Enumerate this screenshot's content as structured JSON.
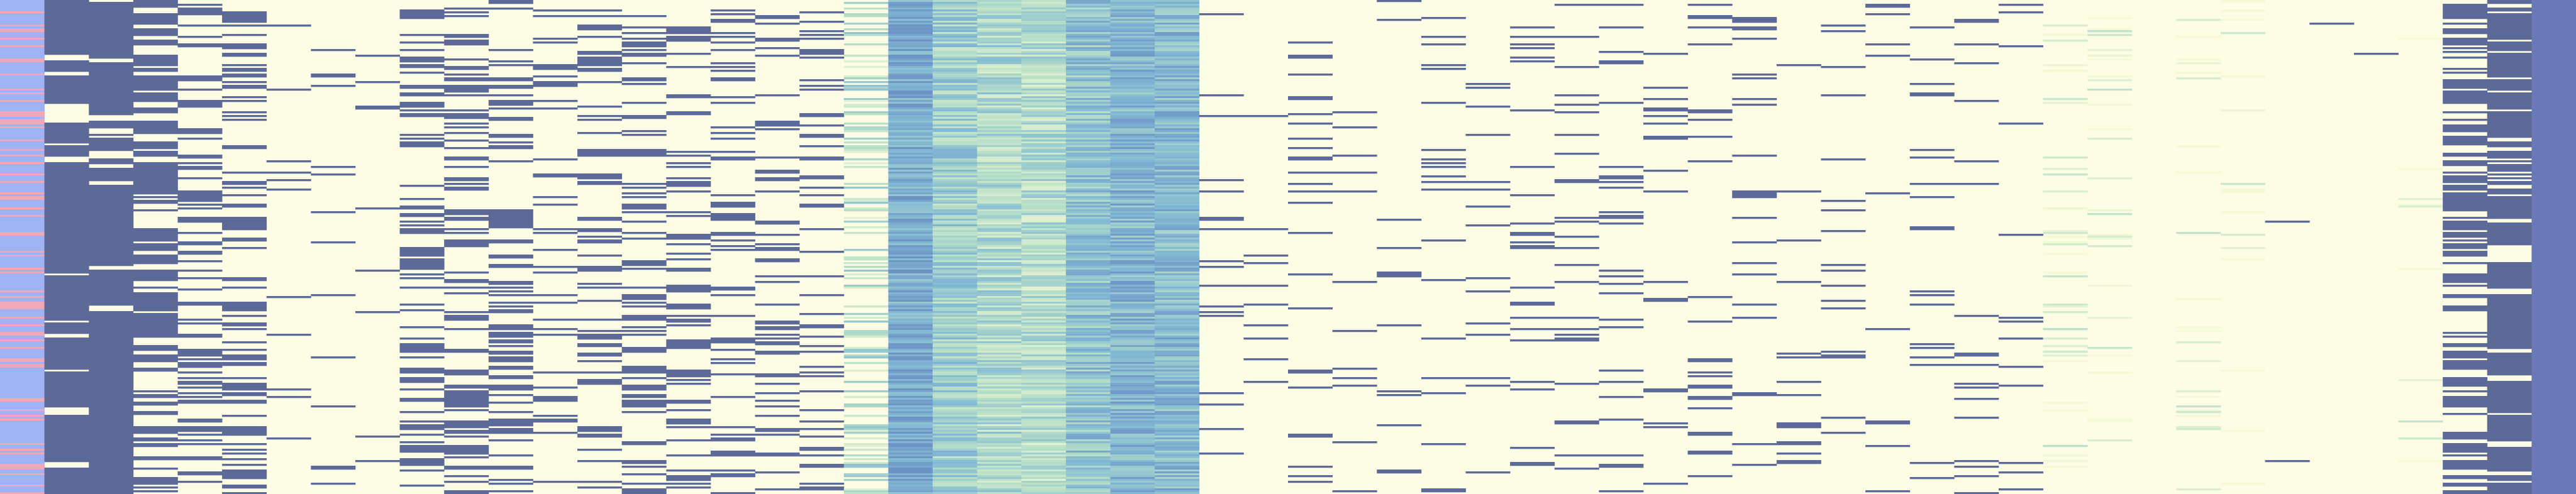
{
  "chart_data": {
    "type": "heatmap",
    "title": "",
    "xlabel": "",
    "ylabel": "",
    "legend": "none",
    "grid": false,
    "n_rows": 262,
    "colors": {
      "background": "#fdfde6",
      "binary_on": "#5d6a97",
      "label_a": "#9fb2f3",
      "label_b": "#eea9b8",
      "teal_low": "#f4f9d6",
      "teal_mid": "#b9e0c8",
      "teal_high": "#84bbd4",
      "teal_deep": "#6e94c6",
      "dense_column": "#6b78b8"
    },
    "columns": [
      {
        "kind": "label",
        "density": 1.0
      },
      {
        "kind": "binary",
        "density": 0.62
      },
      {
        "kind": "binary",
        "density": 0.6
      },
      {
        "kind": "binary",
        "density": 0.48
      },
      {
        "kind": "binary",
        "density": 0.28
      },
      {
        "kind": "binary",
        "density": 0.38
      },
      {
        "kind": "binary",
        "density": 0.04
      },
      {
        "kind": "binary",
        "density": 0.06
      },
      {
        "kind": "binary",
        "density": 0.04
      },
      {
        "kind": "binary",
        "density": 0.36
      },
      {
        "kind": "binary",
        "density": 0.32
      },
      {
        "kind": "binary",
        "density": 0.3
      },
      {
        "kind": "binary",
        "density": 0.18
      },
      {
        "kind": "binary",
        "density": 0.26
      },
      {
        "kind": "binary",
        "density": 0.24
      },
      {
        "kind": "binary",
        "density": 0.26
      },
      {
        "kind": "binary",
        "density": 0.22
      },
      {
        "kind": "binary",
        "density": 0.22
      },
      {
        "kind": "binary",
        "density": 0.2
      },
      {
        "kind": "teal",
        "density": 0.35,
        "level": 0.35
      },
      {
        "kind": "teal",
        "density": 1.0,
        "level": 0.8
      },
      {
        "kind": "teal",
        "density": 1.0,
        "level": 0.5
      },
      {
        "kind": "teal",
        "density": 1.0,
        "level": 0.4
      },
      {
        "kind": "teal",
        "density": 1.0,
        "level": 0.35
      },
      {
        "kind": "teal",
        "density": 1.0,
        "level": 0.6
      },
      {
        "kind": "teal",
        "density": 1.0,
        "level": 0.72
      },
      {
        "kind": "teal",
        "density": 1.0,
        "level": 0.68
      },
      {
        "kind": "binary",
        "density": 0.05
      },
      {
        "kind": "binary",
        "density": 0.04
      },
      {
        "kind": "binary",
        "density": 0.12
      },
      {
        "kind": "binary",
        "density": 0.08
      },
      {
        "kind": "binary",
        "density": 0.05
      },
      {
        "kind": "binary",
        "density": 0.1
      },
      {
        "kind": "binary",
        "density": 0.08
      },
      {
        "kind": "binary",
        "density": 0.12
      },
      {
        "kind": "binary",
        "density": 0.08
      },
      {
        "kind": "binary",
        "density": 0.1
      },
      {
        "kind": "binary",
        "density": 0.08
      },
      {
        "kind": "binary",
        "density": 0.1
      },
      {
        "kind": "binary",
        "density": 0.08
      },
      {
        "kind": "binary",
        "density": 0.06
      },
      {
        "kind": "binary",
        "density": 0.07
      },
      {
        "kind": "binary",
        "density": 0.03
      },
      {
        "kind": "binary",
        "density": 0.08
      },
      {
        "kind": "binary",
        "density": 0.07
      },
      {
        "kind": "binary",
        "density": 0.06
      },
      {
        "kind": "teal",
        "density": 0.12,
        "level": 0.08
      },
      {
        "kind": "teal",
        "density": 0.1,
        "level": 0.06
      },
      {
        "kind": "binary",
        "density": 0.01
      },
      {
        "kind": "teal",
        "density": 0.08,
        "level": 0.05
      },
      {
        "kind": "teal",
        "density": 0.08,
        "level": 0.05
      },
      {
        "kind": "binary",
        "density": 0.01
      },
      {
        "kind": "binary",
        "density": 0.005
      },
      {
        "kind": "binary",
        "density": 0.005
      },
      {
        "kind": "teal",
        "density": 0.04,
        "level": 0.05
      },
      {
        "kind": "binary",
        "density": 0.45
      },
      {
        "kind": "binary",
        "density": 0.55
      },
      {
        "kind": "dense",
        "density": 1.0
      }
    ]
  }
}
